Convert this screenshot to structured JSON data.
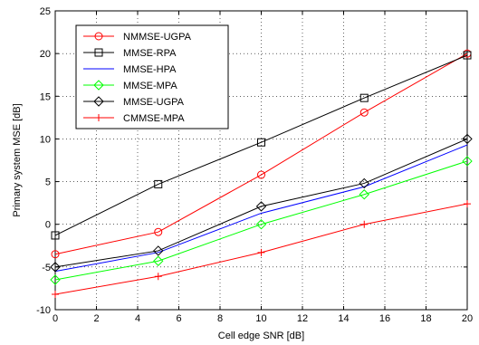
{
  "chart_data": {
    "type": "line",
    "title": "",
    "xlabel": "Cell edge SNR [dB]",
    "ylabel": "Primary system MSE [dB]",
    "xlim": [
      0,
      20
    ],
    "ylim": [
      -10,
      25
    ],
    "x": [
      0,
      5,
      10,
      15,
      20
    ],
    "xticks": [
      0,
      2,
      4,
      6,
      8,
      10,
      12,
      14,
      16,
      18,
      20
    ],
    "yticks": [
      -10,
      -5,
      0,
      5,
      10,
      15,
      20,
      25
    ],
    "grid": true,
    "grid_style": "dotted",
    "legend_position": "top-left",
    "series": [
      {
        "name": "NMMSE-UGPA",
        "color": "#ff0000",
        "marker": "circle",
        "values": [
          -3.5,
          -0.9,
          5.8,
          13.1,
          20.0
        ]
      },
      {
        "name": "MMSE-RPA",
        "color": "#000000",
        "marker": "square",
        "values": [
          -1.3,
          4.7,
          9.6,
          14.8,
          19.8
        ]
      },
      {
        "name": "MMSE-HPA",
        "color": "#0000ff",
        "marker": "none",
        "values": [
          -5.5,
          -3.3,
          1.3,
          4.4,
          9.3
        ]
      },
      {
        "name": "MMSE-MPA",
        "color": "#00ff00",
        "marker": "diamond",
        "values": [
          -6.5,
          -4.3,
          0.0,
          3.5,
          7.4
        ]
      },
      {
        "name": "MMSE-UGPA",
        "color": "#000000",
        "marker": "diamond",
        "values": [
          -5.0,
          -3.1,
          2.1,
          4.8,
          10.0
        ]
      },
      {
        "name": "CMMSE-MPA",
        "color": "#ff0000",
        "marker": "plus",
        "values": [
          -8.2,
          -6.1,
          -3.3,
          0.0,
          2.4
        ]
      }
    ]
  }
}
